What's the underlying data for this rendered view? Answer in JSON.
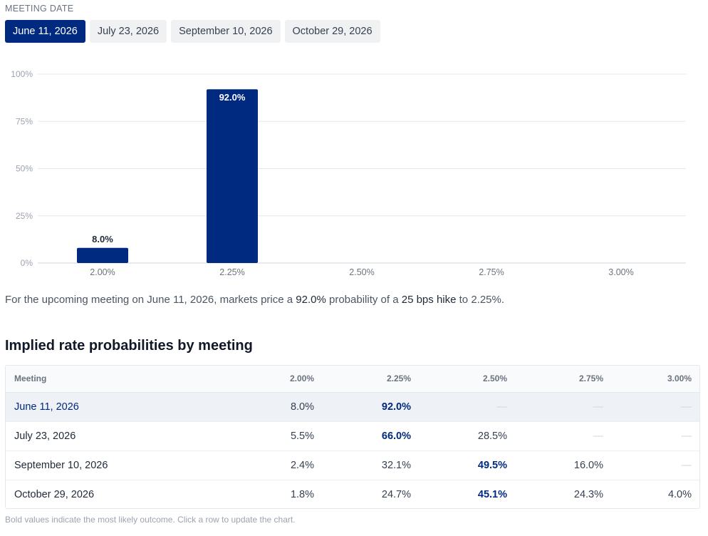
{
  "meeting_label": "MEETING DATE",
  "tabs": [
    {
      "label": "June 11, 2026",
      "active": true
    },
    {
      "label": "July 23, 2026",
      "active": false
    },
    {
      "label": "September 10, 2026",
      "active": false
    },
    {
      "label": "October 29, 2026",
      "active": false
    }
  ],
  "chart_data": {
    "type": "bar",
    "categories": [
      "2.00%",
      "2.25%",
      "2.50%",
      "2.75%",
      "3.00%"
    ],
    "values": [
      8.0,
      92.0,
      0,
      0,
      0
    ],
    "data_labels": [
      "8.0%",
      "92.0%",
      "",
      "",
      ""
    ],
    "y_ticks": [
      "0%",
      "25%",
      "50%",
      "75%",
      "100%"
    ],
    "ylim": [
      0,
      100
    ],
    "grid": true,
    "bar_color": "#002a7f"
  },
  "summary": {
    "prefix": "For the upcoming meeting on June 11, 2026, markets price a ",
    "probability": "92.0%",
    "middle": " probability of a ",
    "action": "25 bps hike",
    "suffix": " to 2.25%."
  },
  "table": {
    "title": "Implied rate probabilities by meeting",
    "headers": [
      "Meeting",
      "2.00%",
      "2.25%",
      "2.50%",
      "2.75%",
      "3.00%"
    ],
    "rows": [
      {
        "cells": [
          "June 11, 2026",
          "8.0%",
          "92.0%",
          "—",
          "—",
          "—"
        ],
        "bold": 2,
        "selected": true
      },
      {
        "cells": [
          "July 23, 2026",
          "5.5%",
          "66.0%",
          "28.5%",
          "—",
          "—"
        ],
        "bold": 2,
        "selected": false
      },
      {
        "cells": [
          "September 10, 2026",
          "2.4%",
          "32.1%",
          "49.5%",
          "16.0%",
          "—"
        ],
        "bold": 3,
        "selected": false
      },
      {
        "cells": [
          "October 29, 2026",
          "1.8%",
          "24.7%",
          "45.1%",
          "24.3%",
          "4.0%"
        ],
        "bold": 3,
        "selected": false
      }
    ]
  },
  "footnote": "Bold values indicate the most likely outcome. Click a row to update the chart.",
  "colors": {
    "accent": "#002a7f",
    "tab_bg": "#f0f1f3",
    "grid": "#e5e7eb"
  }
}
